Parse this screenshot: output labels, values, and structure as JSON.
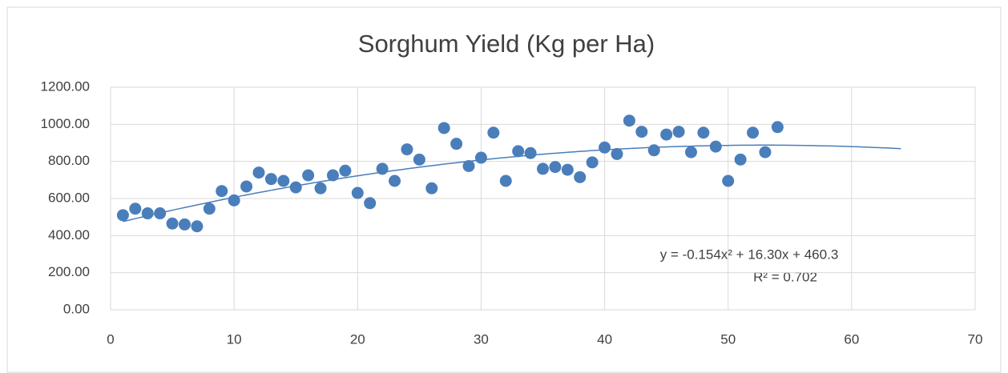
{
  "chart_data": {
    "type": "scatter",
    "title": "Sorghum Yield (Kg per Ha)",
    "series": [
      {
        "color": "#4a7ebb",
        "x": [
          1,
          2,
          3,
          4,
          5,
          6,
          7,
          8,
          9,
          10,
          11,
          12,
          13,
          14,
          15,
          16,
          17,
          18,
          19,
          20,
          21,
          22,
          23,
          24,
          25,
          26,
          27,
          28,
          29,
          30,
          31,
          32,
          33,
          34,
          35,
          36,
          37,
          38,
          39,
          40,
          41,
          42,
          43,
          44,
          45,
          46,
          47,
          48,
          49,
          50,
          51,
          52,
          53,
          54
        ],
        "values": [
          510,
          545,
          520,
          520,
          465,
          460,
          450,
          545,
          640,
          590,
          665,
          740,
          705,
          695,
          660,
          725,
          655,
          725,
          750,
          630,
          575,
          760,
          695,
          865,
          810,
          655,
          980,
          895,
          775,
          820,
          955,
          695,
          855,
          845,
          760,
          770,
          755,
          715,
          795,
          875,
          840,
          1020,
          960,
          860,
          945,
          960,
          850,
          955,
          880,
          695,
          810,
          955,
          850,
          985
        ]
      }
    ],
    "trendline": {
      "type": "polynomial",
      "order": 2,
      "forward": 10,
      "color": "#4a7ebb",
      "equation": "y = -0.154x² + 16.30x + 460.3",
      "r_squared": "R² = 0.702"
    },
    "xlim": [
      0,
      70
    ],
    "xticks": [
      0,
      10,
      20,
      30,
      40,
      50,
      60,
      70
    ],
    "ylim": [
      0,
      1200
    ],
    "yticks": [
      {
        "value": 0,
        "label": "0.00"
      },
      {
        "value": 200,
        "label": "200.00"
      },
      {
        "value": 400,
        "label": "400.00"
      },
      {
        "value": 600,
        "label": "600.00"
      },
      {
        "value": 800,
        "label": "800.00"
      },
      {
        "value": 1000,
        "label": "1000.00"
      },
      {
        "value": 1200,
        "label": "1200.00"
      }
    ],
    "grid": true
  }
}
